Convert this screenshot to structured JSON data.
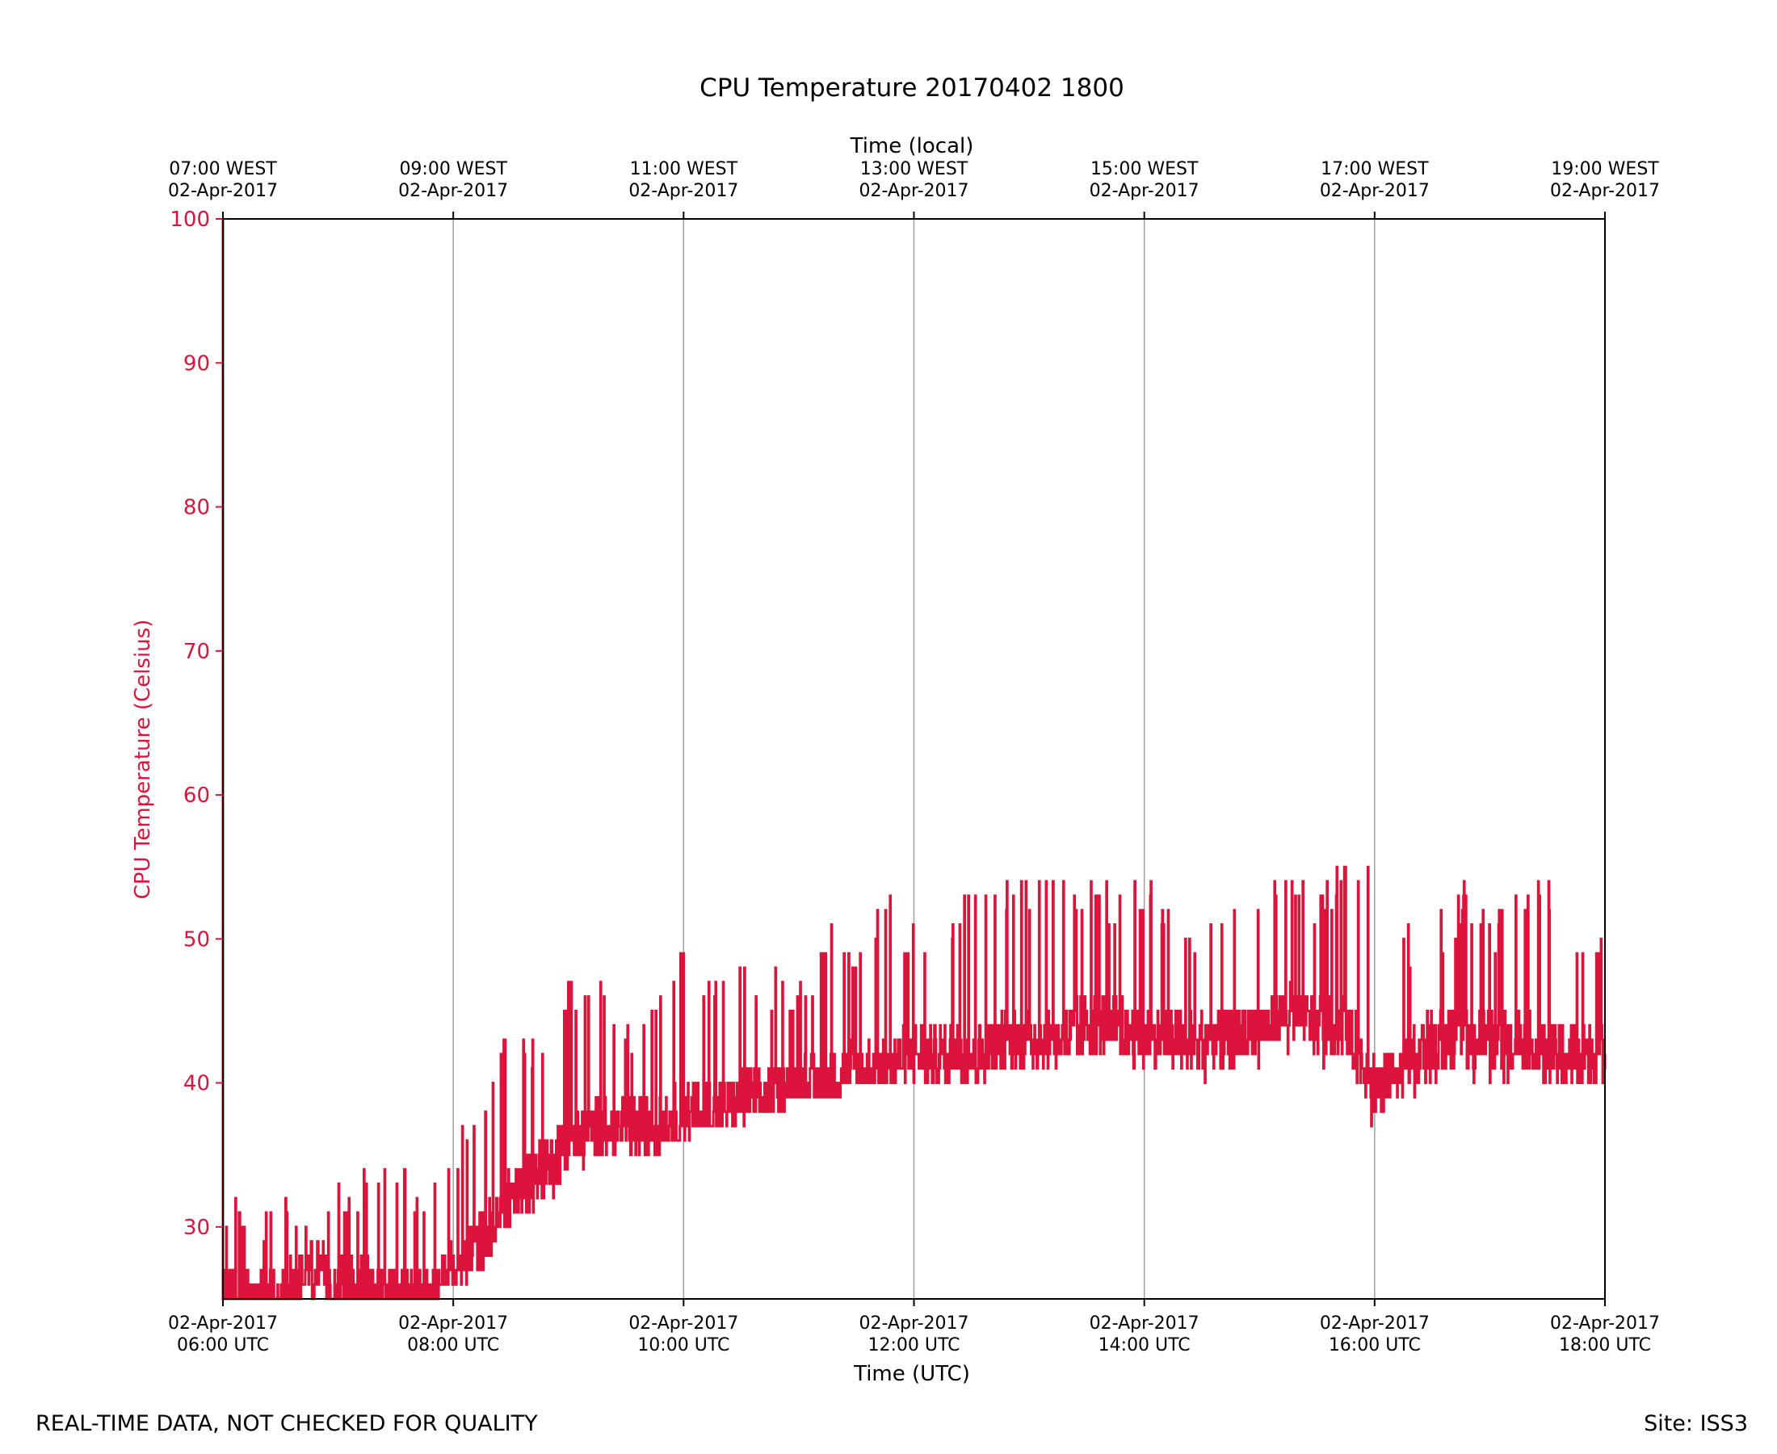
{
  "chart_data": {
    "type": "line",
    "title": "CPU Temperature 20170402 1800",
    "xlabel": "Time (UTC)",
    "x2label": "Time (local)",
    "ylabel": "CPU Temperature (Celsius)",
    "xlim": [
      "2017-04-02T06:00Z",
      "2017-04-02T18:00Z"
    ],
    "ylim": [
      25,
      100
    ],
    "yticks": [
      30,
      40,
      50,
      60,
      70,
      80,
      90,
      100
    ],
    "xticks_bottom": [
      {
        "date": "02-Apr-2017",
        "time": "06:00 UTC"
      },
      {
        "date": "02-Apr-2017",
        "time": "08:00 UTC"
      },
      {
        "date": "02-Apr-2017",
        "time": "10:00 UTC"
      },
      {
        "date": "02-Apr-2017",
        "time": "12:00 UTC"
      },
      {
        "date": "02-Apr-2017",
        "time": "14:00 UTC"
      },
      {
        "date": "02-Apr-2017",
        "time": "16:00 UTC"
      },
      {
        "date": "02-Apr-2017",
        "time": "18:00 UTC"
      }
    ],
    "xticks_top": [
      {
        "time": "07:00 WEST",
        "date": "02-Apr-2017"
      },
      {
        "time": "09:00 WEST",
        "date": "02-Apr-2017"
      },
      {
        "time": "11:00 WEST",
        "date": "02-Apr-2017"
      },
      {
        "time": "13:00 WEST",
        "date": "02-Apr-2017"
      },
      {
        "time": "15:00 WEST",
        "date": "02-Apr-2017"
      },
      {
        "time": "17:00 WEST",
        "date": "02-Apr-2017"
      },
      {
        "time": "19:00 WEST",
        "date": "02-Apr-2017"
      }
    ],
    "grid": "vertical",
    "line_color": "#dc143c",
    "series": [
      {
        "x": [
          "06:00",
          "06:15",
          "06:30",
          "06:45",
          "07:00",
          "07:15",
          "07:30",
          "07:45",
          "08:00",
          "08:15",
          "08:30",
          "08:45",
          "09:00",
          "09:15",
          "09:30",
          "09:45",
          "10:00",
          "10:15",
          "10:30",
          "10:45",
          "11:00",
          "11:15",
          "11:30",
          "11:45",
          "12:00",
          "12:15",
          "12:30",
          "12:45",
          "13:00",
          "13:15",
          "13:30",
          "13:45",
          "14:00",
          "14:15",
          "14:30",
          "14:45",
          "15:00",
          "15:15",
          "15:30",
          "15:45",
          "16:00",
          "16:15",
          "16:30",
          "16:45",
          "17:00",
          "17:15",
          "17:30",
          "17:45",
          "18:00"
        ],
        "values": [
          100,
          25,
          25,
          27,
          26,
          26,
          25,
          25,
          27,
          29,
          32,
          34,
          36,
          37,
          37,
          37,
          38,
          38,
          39,
          39,
          40,
          40,
          41,
          41,
          42,
          42,
          42,
          43,
          43,
          43,
          44,
          44,
          43,
          43,
          43,
          43,
          44,
          45,
          44,
          44,
          40,
          41,
          43,
          43,
          43,
          43,
          42,
          42,
          42
        ],
        "min": [
          25,
          25,
          25,
          25,
          25,
          25,
          25,
          25,
          26,
          27,
          30,
          31,
          33,
          34,
          35,
          35,
          36,
          37,
          37,
          38,
          39,
          39,
          40,
          40,
          40,
          40,
          40,
          40,
          41,
          41,
          41,
          41,
          40,
          40,
          40,
          40,
          41,
          41,
          41,
          41,
          36,
          38,
          40,
          40,
          40,
          40,
          40,
          39,
          39
        ],
        "max": [
          100,
          32,
          32,
          32,
          33,
          35,
          35,
          33,
          36,
          40,
          45,
          43,
          47,
          48,
          45,
          46,
          50,
          48,
          49,
          48,
          47,
          52,
          50,
          53,
          51,
          50,
          54,
          54,
          55,
          54,
          55,
          54,
          54,
          53,
          52,
          52,
          54,
          56,
          54,
          56,
          55,
          51,
          51,
          54,
          52,
          54,
          55,
          51,
          51
        ]
      }
    ]
  },
  "footer": {
    "left": "REAL-TIME DATA, NOT CHECKED FOR QUALITY",
    "right": "Site: ISS3"
  }
}
